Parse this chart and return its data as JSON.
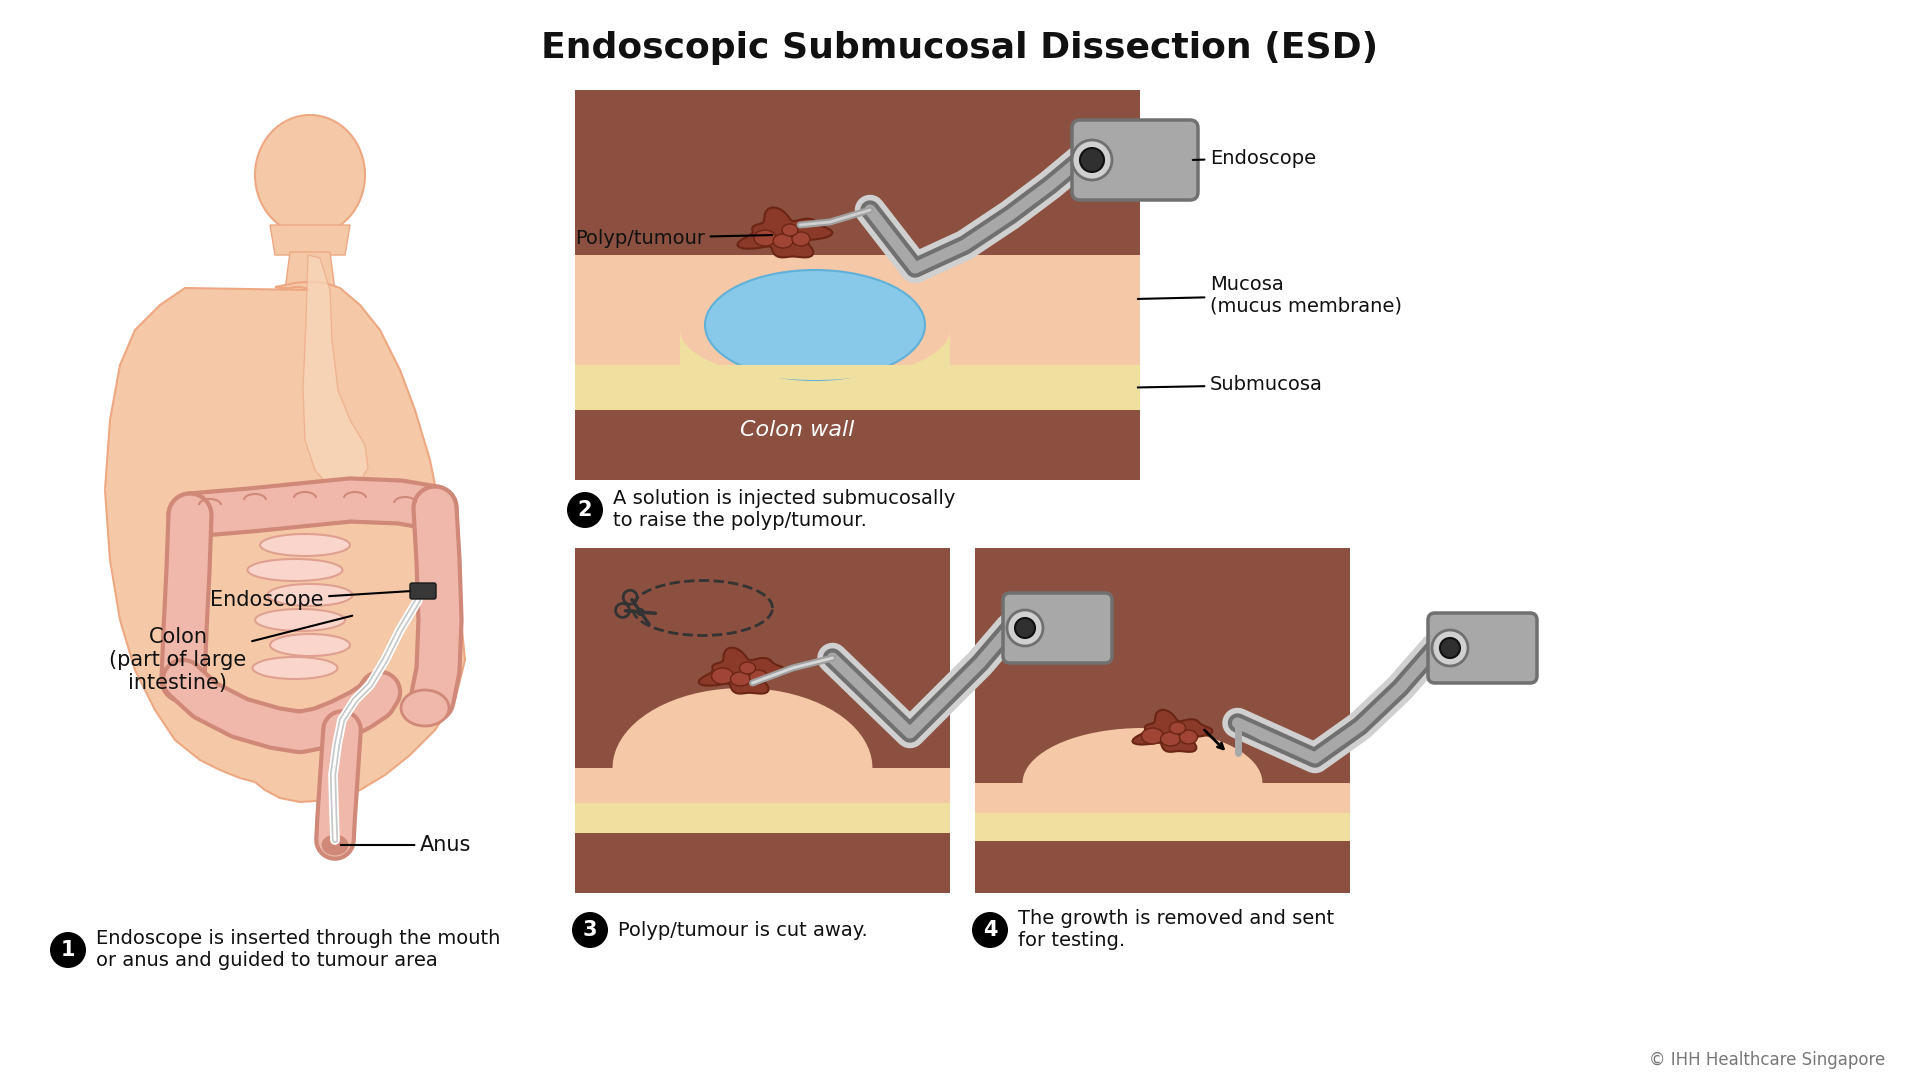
{
  "title": "Endoscopic Submucosal Dissection (ESD)",
  "title_fontsize": 26,
  "title_fontweight": "bold",
  "bg_color": "#ffffff",
  "skin_light": "#f5c9a8",
  "skin_mid": "#eda882",
  "skin_dark": "#e0956a",
  "colon_face": "#f0b8aa",
  "colon_inner": "#fad5cc",
  "colon_edge": "#d08878",
  "mucosa_color": "#f5c9a8",
  "submucosa_color": "#f0e0a0",
  "colon_wall_color": "#8b5040",
  "colon_wall_light": "#a06050",
  "polyp_color": "#8b3a2a",
  "polyp_dark": "#6b2515",
  "polyp_mid": "#a04535",
  "fluid_color": "#88c8e8",
  "fluid_light": "#b8dff0",
  "endo_light": "#d0d0d0",
  "endo_mid": "#a8a8a8",
  "endo_dark": "#707070",
  "text_color": "#111111",
  "copyright": "© IHH Healthcare Singapore",
  "step1_label": "Endoscope is inserted through the mouth\nor anus and guided to tumour area",
  "step2_label": "A solution is injected submucosally\nto raise the polyp/tumour.",
  "step3_label": "Polyp/tumour is cut away.",
  "step4_label": "The growth is removed and sent\nfor testing.",
  "label_endoscope_body": "Endoscope",
  "label_colon_body": "Colon\n(part of large\nintestine)",
  "label_anus_body": "Anus",
  "label_endoscope_p2": "Endoscope",
  "label_polyp_p2": "Polyp/tumour",
  "label_mucosa_p2": "Mucosa\n(mucus membrane)",
  "label_submucosa_p2": "Submucosa",
  "label_colon_wall_p2": "Colon wall"
}
